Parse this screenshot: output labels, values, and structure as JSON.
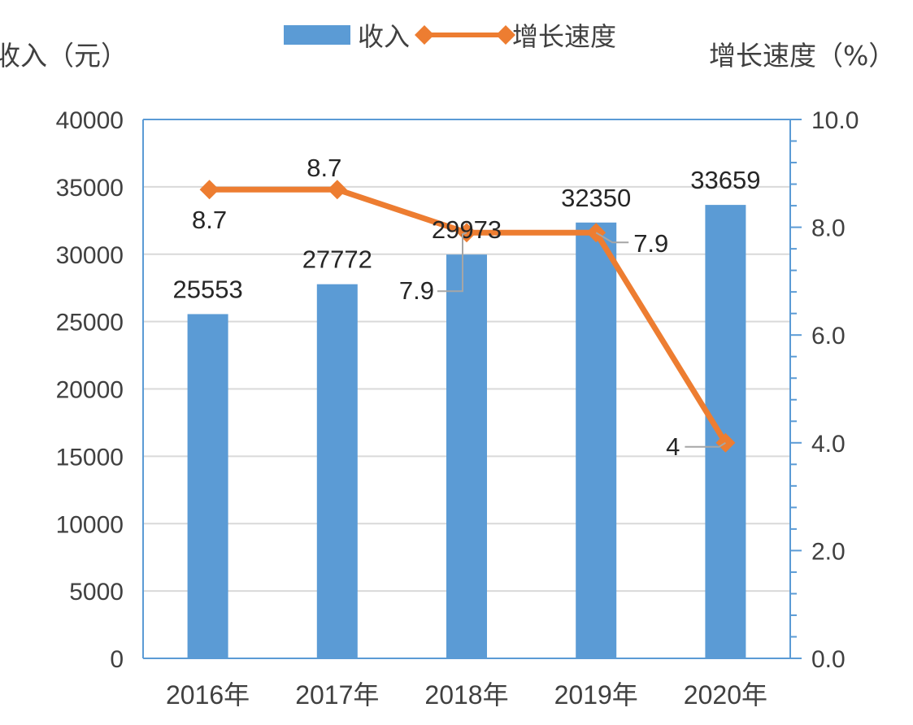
{
  "chart_data": {
    "type": "bar+line",
    "categories": [
      "2016年",
      "2017年",
      "2018年",
      "2019年",
      "2020年"
    ],
    "series": [
      {
        "name": "收入",
        "type": "bar",
        "axis": "left",
        "color": "#5B9BD5",
        "values": [
          25553,
          27772,
          29973,
          32350,
          33659
        ],
        "labels": [
          "25553",
          "27772",
          "29973",
          "32350",
          "33659"
        ]
      },
      {
        "name": "增长速度",
        "type": "line",
        "axis": "right",
        "color": "#ED7D31",
        "marker": "diamond",
        "values": [
          8.7,
          8.7,
          7.9,
          7.9,
          4
        ],
        "labels": [
          "8.7",
          "8.7",
          "7.9",
          "7.9",
          "4"
        ]
      }
    ],
    "y_left": {
      "label": "收入（元）",
      "ylim": [
        0,
        40000
      ],
      "ticks": [
        "0",
        "5000",
        "10000",
        "15000",
        "20000",
        "25000",
        "30000",
        "35000",
        "40000"
      ]
    },
    "y_right": {
      "label": "增长速度（%）",
      "ylim": [
        0,
        10
      ],
      "ticks": [
        "0.0",
        "2.0",
        "4.0",
        "6.0",
        "8.0",
        "10.0"
      ]
    },
    "grid": true,
    "legend_position": "top-center"
  }
}
